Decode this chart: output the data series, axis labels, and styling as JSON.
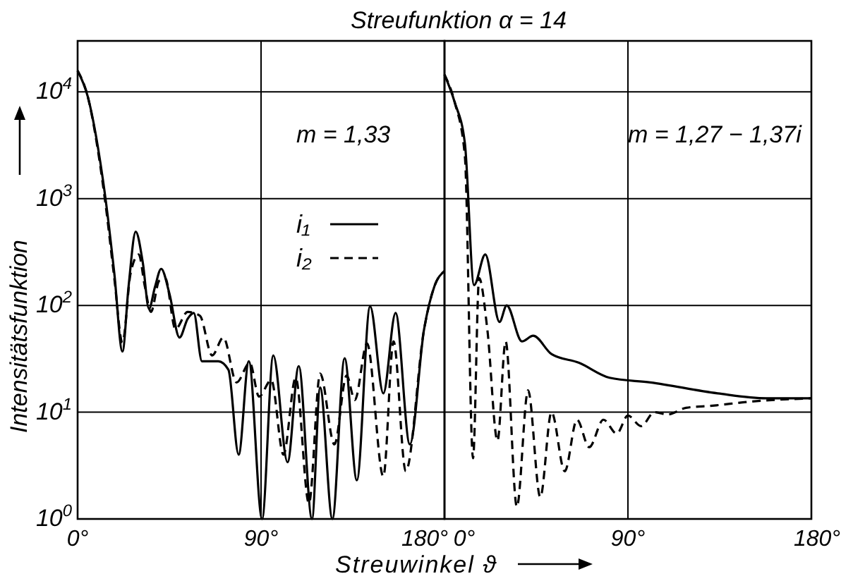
{
  "chart_data": [
    {
      "type": "line",
      "title": "Streufunktion α = 14",
      "xlabel": "Streuwinkel ϑ",
      "ylabel": "Intensitätsfunktion",
      "annotations": [
        "m = 1,33"
      ],
      "log": "y",
      "grid": true,
      "legend": "top",
      "xlim": [
        0,
        180
      ],
      "ylim": [
        1,
        30000
      ],
      "xticks": [
        {
          "value": 0,
          "label": "0°"
        },
        {
          "value": 90,
          "label": "90°"
        },
        {
          "value": 180,
          "label": "180°"
        }
      ],
      "yticks": [
        {
          "value": 1,
          "label": "10$^{0}$"
        },
        {
          "value": 10,
          "label": "10$^{1}$"
        },
        {
          "value": 100,
          "label": "10$^{2}$"
        },
        {
          "value": 1000,
          "label": "10$^{3}$"
        },
        {
          "value": 10000,
          "label": "10$^{4}$"
        }
      ],
      "series": [
        {
          "name": "i₁",
          "color": "#000000",
          "line_style": "solid",
          "x": [
            0,
            5,
            10,
            14,
            18,
            22,
            25,
            28.5,
            32,
            35,
            38,
            41,
            45,
            50,
            54,
            57,
            61,
            69,
            74,
            79,
            84,
            90.5,
            96,
            103,
            108.5,
            115,
            119,
            125,
            131,
            137,
            143.5,
            150,
            156,
            163,
            170,
            175,
            180
          ],
          "values": [
            15800,
            9000,
            3000,
            900,
            200,
            37,
            150,
            490,
            250,
            93,
            150,
            220,
            130,
            50,
            75,
            85,
            30,
            30,
            25,
            4,
            30,
            1,
            34,
            3.4,
            27,
            1,
            17,
            1,
            32,
            2.3,
            98,
            15,
            85,
            5,
            60,
            150,
            210
          ]
        },
        {
          "name": "i₂",
          "color": "#000000",
          "line_style": "dashed",
          "x": [
            0,
            5,
            10,
            14,
            18,
            22,
            26,
            30,
            33,
            36,
            40,
            43,
            48,
            54,
            60,
            66,
            71.5,
            78,
            84.5,
            89,
            95,
            101,
            107,
            113.5,
            119,
            126,
            132,
            136,
            142,
            150,
            155,
            161,
            170,
            175,
            180
          ],
          "values": [
            15800,
            9000,
            2800,
            800,
            180,
            45,
            200,
            300,
            150,
            87,
            170,
            180,
            60,
            87,
            80,
            34,
            50,
            19,
            29,
            14,
            20,
            4,
            21,
            1.4,
            23,
            5,
            22,
            13,
            44,
            2.5,
            46,
            2.8,
            60,
            150,
            210
          ]
        }
      ]
    },
    {
      "type": "line",
      "annotations": [
        "m = 1,27 − 1,37i"
      ],
      "log": "y",
      "grid": true,
      "tick_labels": "x",
      "xlim": [
        0,
        180
      ],
      "ylim": [
        1,
        30000
      ],
      "xticks": [
        {
          "value": 0,
          "label": "0°"
        },
        {
          "value": 90,
          "label": "90°"
        },
        {
          "value": 180,
          "label": "180°"
        }
      ],
      "yticks": [
        {
          "value": 1,
          "label": null
        },
        {
          "value": 10,
          "label": null
        },
        {
          "value": 100,
          "label": null
        },
        {
          "value": 1000,
          "label": null
        },
        {
          "value": 10000,
          "label": null
        }
      ],
      "series": [
        {
          "color": "#000000",
          "line_style": "solid",
          "x": [
            0,
            5,
            10,
            14.5,
            20,
            27,
            30.5,
            38,
            43.5,
            52.5,
            66,
            81,
            101,
            134,
            158,
            180
          ],
          "values": [
            14500,
            8000,
            3300,
            155,
            300,
            70,
            100,
            46,
            52,
            35,
            29,
            21,
            19,
            15,
            13.5,
            13.5
          ]
        },
        {
          "color": "#000000",
          "line_style": "dashed",
          "x": [
            0,
            5,
            10,
            14,
            17,
            21,
            26,
            30,
            35.5,
            41,
            47,
            52.5,
            59,
            65,
            71,
            78,
            84.5,
            90,
            96.5,
            103,
            109.5,
            118.5,
            131.5,
            149,
            180
          ],
          "values": [
            14500,
            8000,
            2500,
            3.7,
            180,
            60,
            5.4,
            46,
            1.3,
            16,
            1.6,
            10,
            2.8,
            8.5,
            4.7,
            8.5,
            6.3,
            9.3,
            7.4,
            10,
            9.5,
            11,
            11.5,
            12.5,
            13.5
          ]
        }
      ]
    }
  ]
}
